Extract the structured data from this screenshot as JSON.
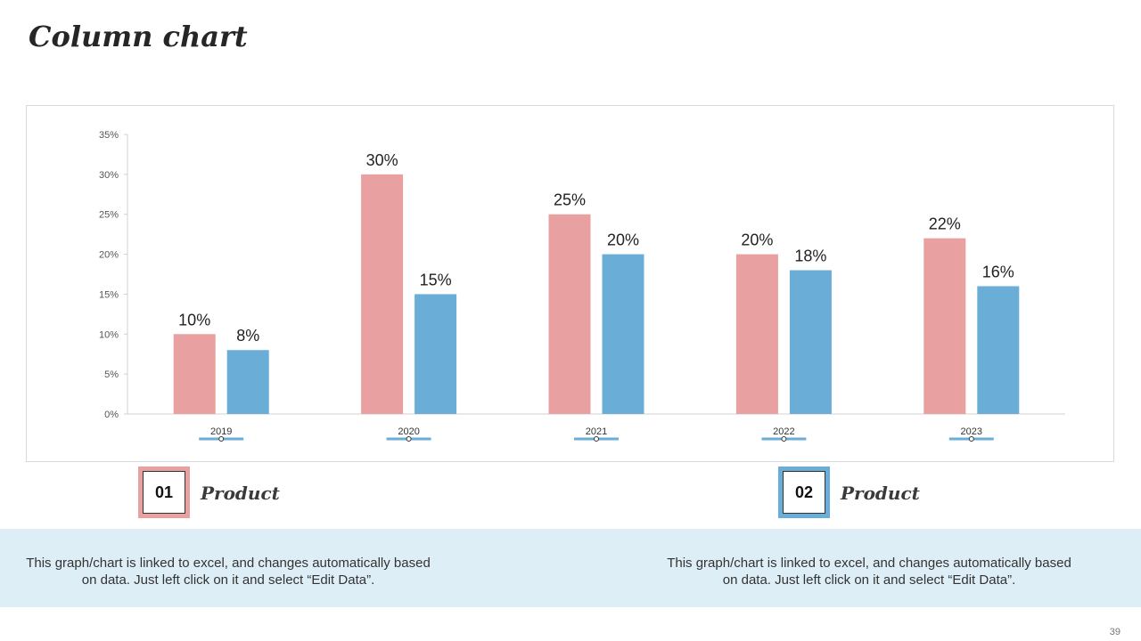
{
  "slide": {
    "title": "Column chart",
    "page_number": "39"
  },
  "legend": [
    {
      "number": "01",
      "label": "Product",
      "color": "#e8a0a0"
    },
    {
      "number": "02",
      "label": "Product",
      "color": "#6aaed8"
    }
  ],
  "info": [
    {
      "text": "This graph/chart is linked to excel, and changes automatically based on data. Just left click on it and select “Edit Data”."
    },
    {
      "text": "This graph/chart is linked to excel, and changes automatically based on data. Just left click on it and select “Edit Data”."
    }
  ],
  "colors": {
    "series1": "#e8a0a0",
    "series2": "#6aaed8",
    "band": "#ddeef7"
  },
  "chart_data": {
    "type": "bar",
    "title": "",
    "xlabel": "",
    "ylabel": "",
    "categories": [
      "2019",
      "2020",
      "2021",
      "2022",
      "2023"
    ],
    "ylim": [
      0,
      35
    ],
    "yticks": [
      0,
      5,
      10,
      15,
      20,
      25,
      30,
      35
    ],
    "ytick_labels": [
      "0%",
      "5%",
      "10%",
      "15%",
      "20%",
      "25%",
      "30%",
      "35%"
    ],
    "series": [
      {
        "name": "Product 01",
        "values": [
          10,
          30,
          25,
          20,
          22
        ],
        "labels": [
          "10%",
          "30%",
          "25%",
          "20%",
          "22%"
        ],
        "color": "#e8a0a0"
      },
      {
        "name": "Product 02",
        "values": [
          8,
          15,
          20,
          18,
          16
        ],
        "labels": [
          "8%",
          "15%",
          "20%",
          "18%",
          "16%"
        ],
        "color": "#6aaed8"
      }
    ],
    "grid": false,
    "legend": "bottom"
  }
}
